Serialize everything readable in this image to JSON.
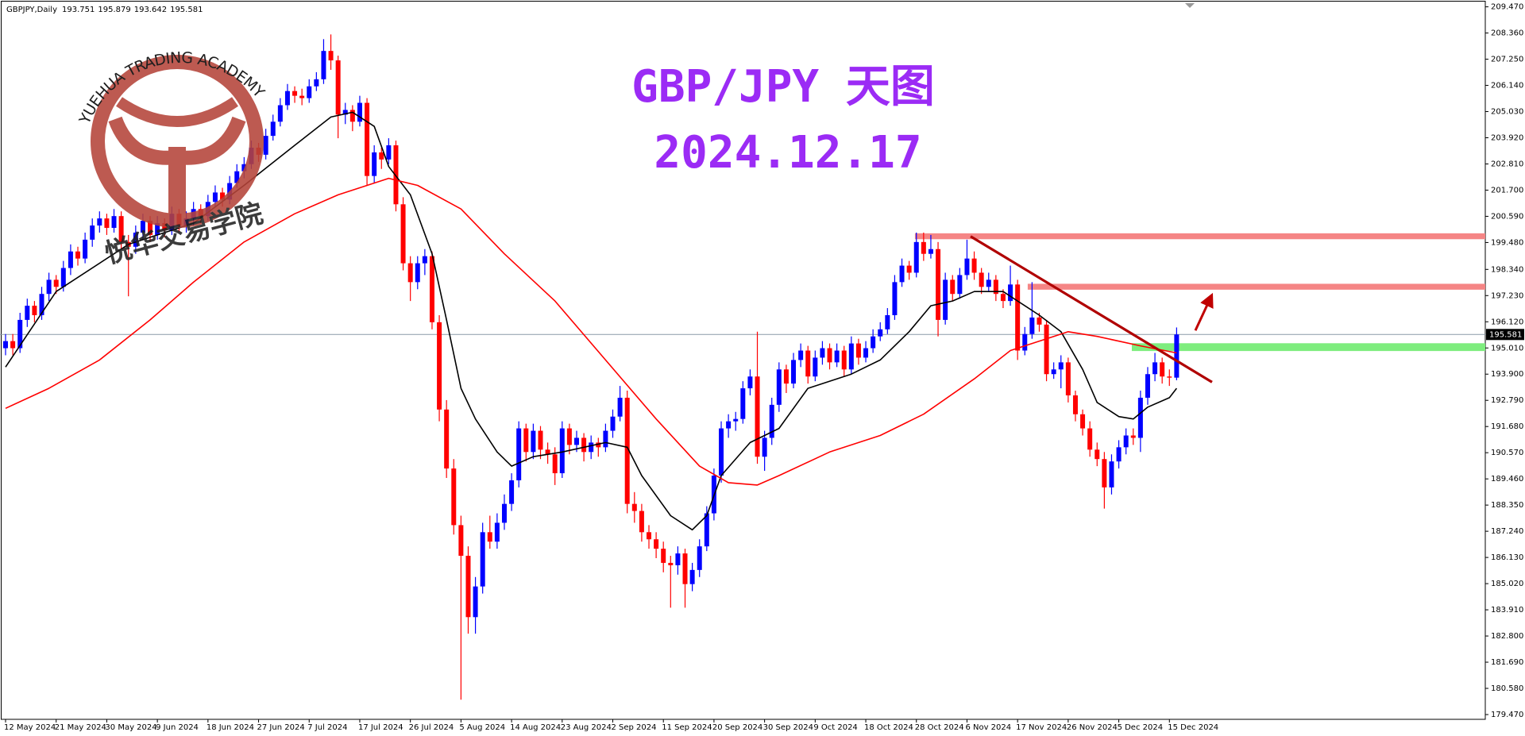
{
  "chart_data": {
    "type": "candlestick",
    "symbol": "GBPJPY,Daily",
    "title": "GBP/JPY 天图",
    "subtitle": "2024.12.17",
    "watermark": "YUEHUA TRADING ACADEMY",
    "watermark_cn": "悦华交易学院",
    "up_color": "#0000ff",
    "down_color": "#ff0000",
    "xlim": [
      -0.77,
      204.7
    ],
    "ylim": [
      179.47,
      209.47
    ],
    "xticks": [
      {
        "value": 0,
        "label": "12 May 2024"
      },
      {
        "value": 7,
        "label": "21 May 2024"
      },
      {
        "value": 14,
        "label": "30 May 2024"
      },
      {
        "value": 21,
        "label": "9 Jun 2024"
      },
      {
        "value": 28,
        "label": "18 Jun 2024"
      },
      {
        "value": 35,
        "label": "27 Jun 2024"
      },
      {
        "value": 42,
        "label": "7 Jul 2024"
      },
      {
        "value": 49,
        "label": "17 Jul 2024"
      },
      {
        "value": 56,
        "label": "26 Jul 2024"
      },
      {
        "value": 63,
        "label": "5 Aug 2024"
      },
      {
        "value": 70,
        "label": "14 Aug 2024"
      },
      {
        "value": 77,
        "label": "23 Aug 2024"
      },
      {
        "value": 84,
        "label": "2 Sep 2024"
      },
      {
        "value": 91,
        "label": "11 Sep 2024"
      },
      {
        "value": 98,
        "label": "20 Sep 2024"
      },
      {
        "value": 105,
        "label": "30 Sep 2024"
      },
      {
        "value": 112,
        "label": "9 Oct 2024"
      },
      {
        "value": 119,
        "label": "18 Oct 2024"
      },
      {
        "value": 126,
        "label": "28 Oct 2024"
      },
      {
        "value": 133,
        "label": "6 Nov 2024"
      },
      {
        "value": 140,
        "label": "17 Nov 2024"
      },
      {
        "value": 147,
        "label": "26 Nov 2024"
      },
      {
        "value": 154,
        "label": "5 Dec 2024"
      },
      {
        "value": 161,
        "label": "15 Dec 2024"
      }
    ],
    "yticks": [
      {
        "value": 209.47,
        "label": "209.470"
      },
      {
        "value": 208.36,
        "label": "208.360"
      },
      {
        "value": 207.25,
        "label": "207.250"
      },
      {
        "value": 206.14,
        "label": "206.140"
      },
      {
        "value": 205.03,
        "label": "205.030"
      },
      {
        "value": 203.92,
        "label": "203.920"
      },
      {
        "value": 202.81,
        "label": "202.810"
      },
      {
        "value": 201.7,
        "label": "201.700"
      },
      {
        "value": 200.59,
        "label": "200.590"
      },
      {
        "value": 199.48,
        "label": "199.480"
      },
      {
        "value": 198.34,
        "label": "198.340"
      },
      {
        "value": 197.23,
        "label": "197.230"
      },
      {
        "value": 196.12,
        "label": "196.120"
      },
      {
        "value": 195.01,
        "label": "195.010"
      },
      {
        "value": 193.9,
        "label": "193.900"
      },
      {
        "value": 192.79,
        "label": "192.790"
      },
      {
        "value": 191.68,
        "label": "191.680"
      },
      {
        "value": 190.57,
        "label": "190.570"
      },
      {
        "value": 189.46,
        "label": "189.460"
      },
      {
        "value": 188.35,
        "label": "188.350"
      },
      {
        "value": 187.24,
        "label": "187.240"
      },
      {
        "value": 186.13,
        "label": "186.130"
      },
      {
        "value": 185.02,
        "label": "185.020"
      },
      {
        "value": 183.91,
        "label": "183.910"
      },
      {
        "value": 182.8,
        "label": "182.800"
      },
      {
        "value": 181.69,
        "label": "181.690"
      },
      {
        "value": 180.58,
        "label": "180.580"
      },
      {
        "value": 179.47,
        "label": "179.470"
      }
    ],
    "open": [
      195.0,
      195.3,
      195.0,
      196.2,
      196.8,
      196.4,
      197.3,
      197.9,
      197.6,
      198.4,
      199.1,
      198.8,
      199.6,
      200.2,
      200.5,
      200.1,
      200.6,
      199.5,
      199.3,
      199.9,
      200.4,
      199.8,
      200.3,
      200.0,
      200.7,
      200.2,
      200.5,
      200.9,
      200.6,
      201.2,
      201.6,
      201.3,
      202.0,
      202.5,
      202.8,
      203.5,
      203.2,
      204.0,
      204.6,
      205.3,
      205.9,
      205.7,
      205.6,
      206.1,
      206.4,
      207.6,
      207.2,
      204.9,
      205.1,
      204.6,
      205.4,
      202.3,
      203.3,
      203.0,
      203.6,
      201.1,
      198.6,
      197.8,
      198.6,
      198.9,
      196.1,
      192.4,
      189.9,
      187.5,
      186.2,
      183.6,
      184.9,
      187.2,
      186.8,
      187.6,
      188.4,
      189.4,
      191.6,
      190.6,
      191.5,
      190.7,
      190.5,
      189.7,
      191.6,
      190.9,
      191.2,
      190.6,
      191.0,
      190.8,
      191.5,
      192.1,
      192.9,
      188.4,
      188.1,
      187.2,
      186.9,
      186.5,
      185.9,
      185.8,
      186.3,
      185.0,
      185.6,
      186.6,
      188.0,
      189.6,
      191.6,
      191.9,
      192.0,
      193.3,
      193.8,
      190.4,
      191.2,
      192.6,
      194.1,
      193.5,
      194.5,
      194.9,
      193.8,
      194.6,
      195.0,
      194.4,
      194.9,
      194.1,
      195.2,
      194.6,
      195.0,
      195.5,
      195.8,
      196.4,
      197.8,
      198.5,
      198.2,
      199.5,
      199.0,
      199.2,
      196.2,
      197.9,
      197.3,
      198.1,
      198.8,
      198.2,
      197.6,
      197.9,
      197.3,
      197.0,
      197.7,
      194.9,
      195.6,
      196.3,
      196.0,
      193.9,
      194.1,
      194.4,
      193.0,
      192.2,
      191.6,
      190.7,
      190.3,
      189.1,
      190.2,
      190.8,
      191.3,
      191.2,
      192.9,
      193.9,
      194.4,
      193.8,
      193.751
    ],
    "high": [
      195.6,
      195.6,
      196.5,
      197.1,
      197.0,
      197.6,
      198.2,
      198.1,
      198.7,
      199.4,
      199.3,
      199.9,
      200.5,
      200.8,
      200.7,
      200.9,
      200.8,
      199.8,
      200.2,
      200.7,
      200.6,
      200.6,
      200.5,
      201.0,
      200.9,
      200.8,
      201.2,
      201.1,
      201.5,
      201.9,
      201.8,
      202.3,
      202.8,
      203.1,
      203.8,
      203.7,
      204.3,
      204.9,
      205.6,
      206.2,
      206.1,
      206.0,
      206.4,
      206.7,
      208.1,
      208.3,
      207.4,
      205.4,
      205.3,
      205.7,
      205.6,
      203.6,
      203.5,
      203.9,
      203.8,
      201.4,
      198.9,
      198.9,
      199.2,
      199.1,
      196.4,
      192.8,
      190.3,
      187.9,
      186.6,
      185.3,
      187.6,
      187.9,
      188.0,
      188.8,
      189.7,
      191.9,
      191.8,
      191.8,
      191.7,
      191.0,
      190.8,
      191.9,
      191.8,
      191.5,
      191.4,
      191.3,
      191.2,
      191.8,
      192.4,
      193.4,
      193.2,
      188.9,
      188.4,
      187.5,
      187.2,
      186.8,
      186.2,
      186.6,
      186.5,
      185.9,
      186.9,
      188.3,
      189.9,
      191.9,
      192.2,
      192.3,
      193.6,
      194.1,
      195.7,
      191.5,
      192.9,
      194.4,
      194.3,
      194.8,
      195.2,
      195.1,
      194.9,
      195.3,
      195.2,
      195.2,
      195.1,
      195.5,
      195.4,
      195.3,
      195.8,
      196.1,
      196.7,
      198.1,
      198.8,
      198.7,
      199.9,
      199.9,
      199.8,
      199.5,
      198.2,
      198.1,
      198.4,
      199.6,
      199.1,
      198.4,
      198.2,
      198.1,
      197.5,
      198.5,
      197.9,
      195.9,
      197.8,
      196.5,
      196.2,
      194.4,
      194.7,
      194.6,
      193.2,
      192.4,
      191.9,
      191.0,
      190.6,
      190.5,
      191.1,
      191.6,
      191.6,
      193.2,
      194.2,
      194.8,
      194.6,
      194.1,
      195.879
    ],
    "low": [
      194.7,
      194.7,
      194.8,
      195.9,
      196.1,
      196.2,
      197.0,
      197.3,
      197.4,
      198.1,
      198.5,
      198.6,
      199.3,
      199.9,
      199.8,
      199.9,
      199.2,
      197.2,
      199.0,
      199.6,
      199.5,
      199.6,
      199.7,
      199.8,
      199.9,
      199.9,
      200.2,
      200.3,
      200.4,
      201.0,
      201.0,
      201.1,
      201.8,
      202.2,
      202.6,
      202.9,
      203.0,
      203.8,
      204.4,
      205.1,
      205.4,
      205.3,
      205.4,
      205.9,
      206.2,
      206.8,
      203.9,
      204.5,
      204.2,
      204.4,
      201.9,
      202.0,
      202.6,
      202.8,
      200.8,
      198.3,
      197.0,
      197.5,
      198.1,
      195.8,
      191.9,
      189.5,
      187.1,
      180.1,
      182.9,
      182.9,
      184.6,
      186.5,
      186.5,
      187.3,
      188.1,
      189.1,
      190.2,
      190.3,
      190.3,
      190.1,
      189.2,
      189.5,
      190.5,
      190.6,
      190.2,
      190.3,
      190.4,
      190.6,
      191.2,
      191.9,
      188.0,
      187.6,
      186.8,
      186.5,
      186.1,
      185.5,
      184.0,
      185.4,
      184.0,
      184.7,
      185.3,
      186.4,
      187.7,
      189.3,
      191.2,
      191.5,
      191.8,
      193.0,
      190.1,
      189.8,
      190.9,
      192.3,
      193.1,
      193.3,
      194.2,
      193.5,
      193.6,
      194.3,
      194.1,
      194.2,
      193.8,
      193.9,
      194.3,
      194.4,
      194.8,
      195.3,
      195.6,
      196.2,
      197.6,
      197.9,
      198.0,
      198.7,
      198.8,
      195.5,
      196.0,
      197.0,
      197.1,
      197.9,
      197.9,
      197.3,
      197.4,
      197.0,
      196.7,
      196.8,
      194.5,
      194.7,
      195.4,
      195.7,
      193.6,
      193.7,
      193.3,
      192.7,
      191.9,
      191.3,
      190.4,
      190.0,
      188.2,
      188.8,
      189.9,
      190.5,
      190.9,
      190.6,
      192.6,
      193.6,
      193.5,
      193.4,
      193.642
    ],
    "close": [
      195.3,
      195.0,
      196.2,
      196.8,
      196.4,
      197.3,
      197.9,
      197.6,
      198.4,
      199.1,
      198.8,
      199.6,
      200.2,
      200.5,
      200.1,
      200.6,
      199.5,
      199.3,
      199.9,
      200.4,
      199.8,
      200.3,
      200.0,
      200.7,
      200.2,
      200.5,
      200.9,
      200.6,
      201.2,
      201.6,
      201.3,
      202.0,
      202.5,
      202.8,
      203.5,
      203.2,
      204.0,
      204.6,
      205.3,
      205.9,
      205.7,
      205.6,
      206.1,
      206.4,
      207.6,
      207.2,
      204.9,
      205.1,
      204.6,
      205.4,
      202.3,
      203.3,
      203.0,
      203.6,
      201.1,
      198.6,
      197.8,
      198.6,
      198.9,
      196.1,
      192.4,
      189.9,
      187.5,
      186.2,
      183.6,
      184.9,
      187.2,
      186.8,
      187.6,
      188.4,
      189.4,
      191.6,
      190.6,
      191.5,
      190.7,
      190.5,
      189.7,
      191.6,
      190.9,
      191.2,
      190.6,
      191.0,
      190.8,
      191.5,
      192.1,
      192.9,
      188.4,
      188.1,
      187.2,
      186.9,
      186.5,
      185.9,
      185.8,
      186.3,
      185.0,
      185.6,
      186.6,
      188.0,
      189.6,
      191.6,
      191.9,
      192.0,
      193.3,
      193.8,
      190.4,
      191.2,
      192.6,
      194.1,
      193.5,
      194.5,
      194.9,
      193.8,
      194.6,
      195.0,
      194.4,
      194.9,
      194.1,
      195.2,
      194.6,
      195.0,
      195.5,
      195.8,
      196.4,
      197.8,
      198.5,
      198.2,
      199.5,
      199.0,
      199.2,
      196.2,
      197.9,
      197.3,
      198.1,
      198.8,
      198.2,
      197.6,
      197.9,
      197.3,
      197.0,
      197.7,
      194.9,
      195.6,
      196.3,
      196.0,
      193.9,
      194.1,
      194.4,
      193.0,
      192.2,
      191.6,
      190.7,
      190.3,
      189.1,
      190.2,
      190.8,
      191.3,
      191.2,
      192.9,
      193.9,
      194.4,
      193.8,
      193.751,
      195.581
    ],
    "lines": [
      {
        "color": "#000000",
        "x": [
          0,
          7,
          17,
          26,
          33,
          40,
          45,
          48,
          51,
          53,
          56,
          59,
          61,
          63,
          65,
          68,
          70,
          73,
          77,
          83,
          86,
          88,
          92,
          95,
          97,
          99,
          103,
          107,
          111,
          117,
          121,
          125,
          128,
          131,
          134,
          138,
          141,
          143,
          146,
          149,
          151,
          154,
          156,
          158,
          161,
          162
        ],
        "values": [
          194.2,
          197.4,
          199.4,
          200.3,
          201.9,
          203.6,
          204.8,
          205.0,
          204.4,
          202.7,
          201.5,
          199.0,
          196.2,
          193.3,
          192.0,
          190.6,
          190.0,
          190.4,
          190.6,
          191.0,
          190.8,
          189.6,
          187.9,
          187.3,
          187.9,
          189.6,
          191.0,
          191.6,
          193.3,
          193.9,
          194.5,
          195.7,
          196.8,
          197.0,
          197.4,
          197.4,
          196.8,
          196.4,
          195.7,
          194.1,
          192.7,
          192.1,
          192.0,
          192.5,
          192.9,
          193.3
        ]
      },
      {
        "color": "#ff0000",
        "x": [
          0,
          6,
          13,
          20,
          26,
          33,
          40,
          46,
          53,
          57,
          63,
          69,
          76,
          83,
          90,
          96,
          100,
          104,
          107,
          114,
          121,
          127,
          134,
          139,
          145,
          147,
          151,
          157,
          162
        ],
        "values": [
          192.45,
          193.3,
          194.5,
          196.2,
          197.8,
          199.5,
          200.7,
          201.5,
          202.2,
          201.9,
          200.9,
          199.0,
          197.0,
          194.5,
          192.0,
          190.0,
          189.3,
          189.2,
          189.6,
          190.6,
          191.3,
          192.2,
          193.7,
          194.9,
          195.5,
          195.7,
          195.5,
          195.1,
          194.8
        ]
      }
    ],
    "zones": [
      {
        "color": "#f58585",
        "x": [
          125.8,
          204.7
        ],
        "y": [
          199.62,
          199.87
        ]
      },
      {
        "color": "#f58585",
        "x": [
          141.4,
          204.7
        ],
        "y": [
          197.48,
          197.73
        ]
      },
      {
        "color": "#7eed7e",
        "x": [
          155.8,
          204.7
        ],
        "y": [
          194.88,
          195.21
        ]
      }
    ],
    "trendline": {
      "color": "#b00000",
      "x": [
        133.5,
        166.9
      ],
      "values": [
        199.74,
        193.56
      ]
    },
    "arrow": {
      "color": "#c00000",
      "x": [
        164.6,
        166.6
      ],
      "values": [
        195.75,
        197.07
      ]
    }
  }
}
